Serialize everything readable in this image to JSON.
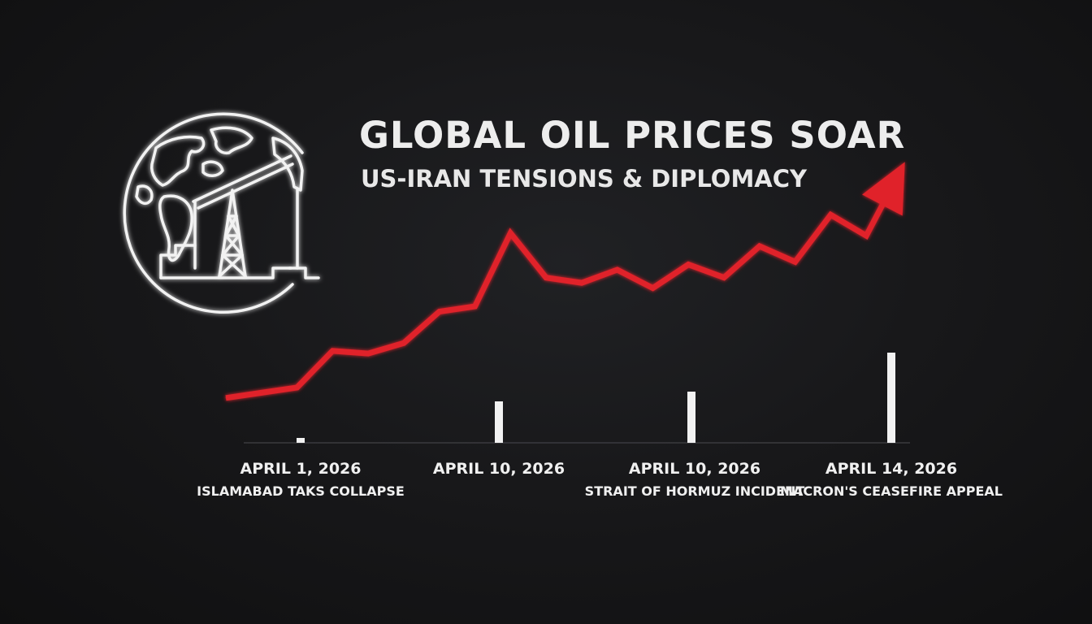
{
  "header": {
    "title": "GLOBAL OIL PRICES SOAR",
    "subtitle": "US-IRAN TENSIONS & DIPLOMACY"
  },
  "icons": {
    "emblem": "globe-oil-pump-icon",
    "trend_arrow": "arrow-up-icon"
  },
  "colors": {
    "background": "#161618",
    "price_line": "#e0202a",
    "event_bars": "#f2f2f2",
    "text": "#ececec"
  },
  "chart_data": {
    "type": "line",
    "title": "GLOBAL OIL PRICES SOAR",
    "subtitle": "US-IRAN TENSIONS & DIPLOMACY",
    "xlabel": "",
    "ylabel": "",
    "y_axis_shown": false,
    "grid": false,
    "series": [
      {
        "color": "#e0202a",
        "values": [
          10,
          12,
          14,
          28,
          27,
          31,
          43,
          45,
          73,
          56,
          54,
          59,
          52,
          61,
          56,
          68,
          62,
          80,
          72,
          98
        ]
      }
    ],
    "ylim": [
      0,
      100
    ],
    "events": [
      {
        "date": "APRIL 1, 2026",
        "label": "ISLAMABAD TAKS COLLAPSE",
        "value": 2
      },
      {
        "date": "APRIL 10, 2026",
        "label": "",
        "value": 17
      },
      {
        "date": "APRIL 10, 2026",
        "label": "STRAIT OF HORMUZ INCIDENT",
        "value": 21
      },
      {
        "date": "APRIL 14, 2026",
        "label": "MACRON'S CEASEFIRE APPEAL",
        "value": 37
      }
    ]
  }
}
